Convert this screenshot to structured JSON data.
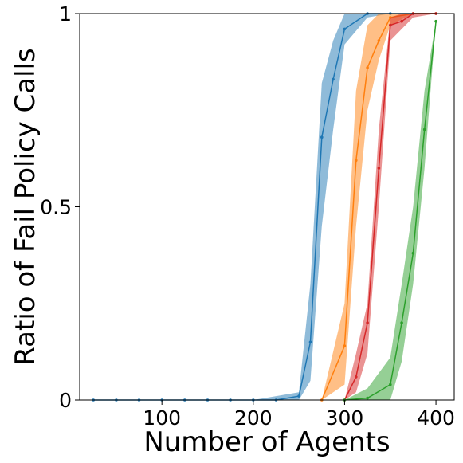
{
  "chart_data": {
    "type": "line",
    "title": "",
    "xlabel": "Number of Agents",
    "ylabel": "Ratio of Fail Policy Calls",
    "xlim": [
      10,
      420
    ],
    "ylim": [
      0,
      1
    ],
    "xticks": [
      100,
      200,
      300,
      400
    ],
    "xtick_labels": [
      "100",
      "200",
      "300",
      "400"
    ],
    "yticks": [
      0,
      0.5,
      1
    ],
    "ytick_labels": [
      "0",
      "0.5",
      "1"
    ],
    "grid": false,
    "legend": "none",
    "series": [
      {
        "color": "#1f77b4",
        "x": [
          25,
          50,
          75,
          100,
          125,
          150,
          175,
          200,
          225,
          250,
          262.5,
          275,
          287.5,
          300,
          325,
          350,
          375,
          400
        ],
        "y": [
          0,
          0,
          0,
          0,
          0,
          0,
          0,
          0,
          0,
          0.01,
          0.15,
          0.68,
          0.83,
          0.96,
          1.0,
          1.0,
          1.0,
          1.0
        ],
        "lower": [
          0,
          0,
          0,
          0,
          0,
          0,
          0,
          0,
          0,
          0.0,
          0.05,
          0.45,
          0.7,
          0.92,
          0.99,
          1.0,
          1.0,
          1.0
        ],
        "upper": [
          0,
          0,
          0,
          0,
          0,
          0,
          0,
          0,
          0.01,
          0.02,
          0.3,
          0.82,
          0.93,
          1.0,
          1.0,
          1.0,
          1.0,
          1.0
        ]
      },
      {
        "color": "#ff7f0e",
        "x": [
          275,
          300,
          312.5,
          325,
          337.5,
          350,
          375,
          400
        ],
        "y": [
          0,
          0.14,
          0.62,
          0.86,
          0.93,
          0.99,
          1.0,
          1.0
        ],
        "lower": [
          0,
          0.04,
          0.45,
          0.75,
          0.88,
          0.97,
          1.0,
          1.0
        ],
        "upper": [
          0,
          0.25,
          0.8,
          0.97,
          1.0,
          1.0,
          1.0,
          1.0
        ]
      },
      {
        "color": "#d62728",
        "x": [
          300,
          312.5,
          325,
          337.5,
          350,
          362.5,
          375,
          400
        ],
        "y": [
          0,
          0.06,
          0.2,
          0.6,
          0.97,
          0.98,
          1.0,
          1.0
        ],
        "lower": [
          0,
          0.02,
          0.12,
          0.5,
          0.93,
          0.96,
          0.99,
          1.0
        ],
        "upper": [
          0,
          0.12,
          0.25,
          0.7,
          0.99,
          1.0,
          1.0,
          1.0
        ]
      },
      {
        "color": "#2ca02c",
        "x": [
          300,
          325,
          350,
          362.5,
          375,
          387.5,
          400
        ],
        "y": [
          0,
          0.005,
          0.04,
          0.2,
          0.38,
          0.7,
          0.98
        ],
        "lower": [
          0,
          0,
          0.0,
          0.1,
          0.3,
          0.6,
          0.98
        ],
        "upper": [
          0,
          0.03,
          0.11,
          0.3,
          0.5,
          0.8,
          0.98
        ]
      }
    ]
  }
}
